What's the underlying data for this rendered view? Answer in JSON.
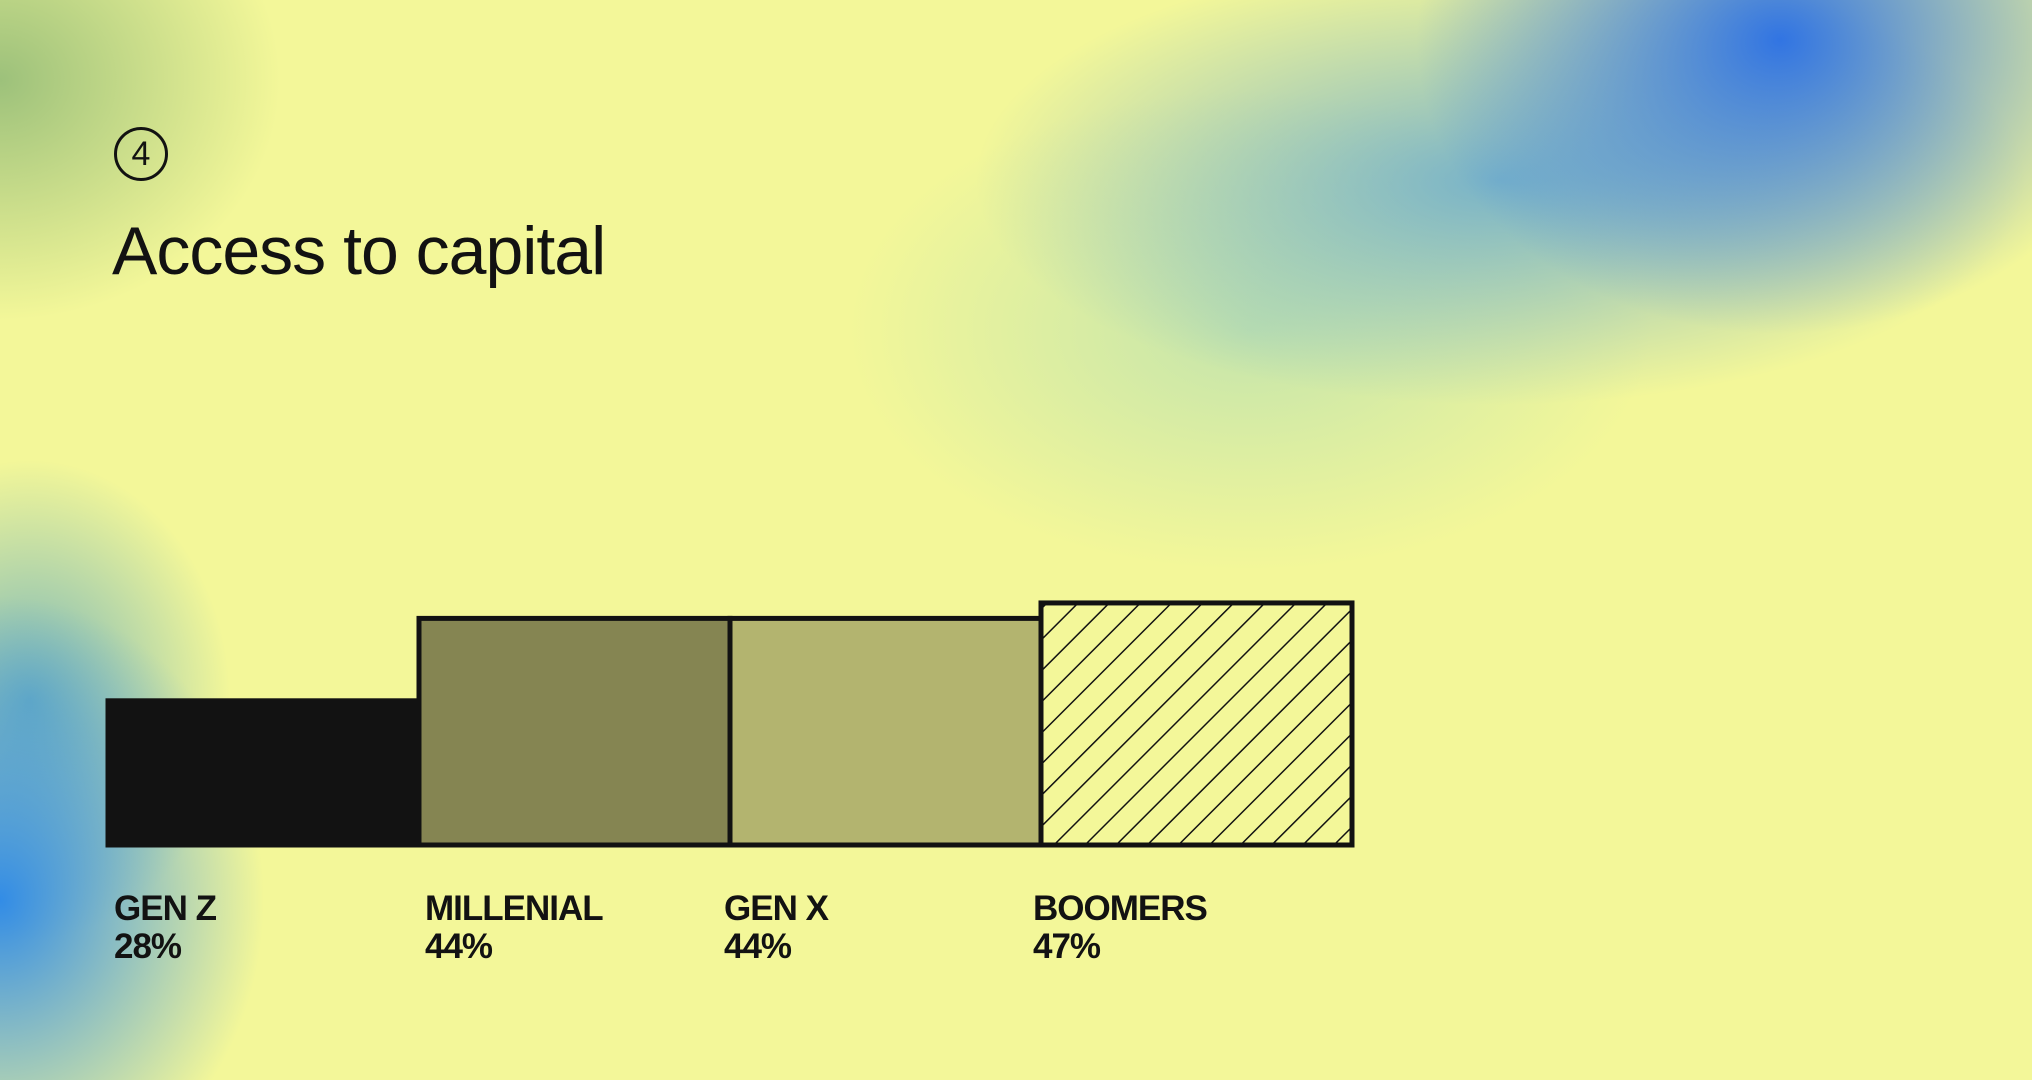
{
  "section_number": "4",
  "chart_data": {
    "type": "bar",
    "title": "Access to capital",
    "categories": [
      "GEN Z",
      "MILLENIAL",
      "GEN X",
      "BOOMERS"
    ],
    "values": [
      28,
      44,
      44,
      47
    ],
    "value_labels": [
      "28%",
      "44%",
      "44%",
      "47%"
    ],
    "unit": "%",
    "fills": [
      "#121212",
      "#858552",
      "#b3b46f",
      "hatched"
    ],
    "grid": false,
    "axes": false
  }
}
